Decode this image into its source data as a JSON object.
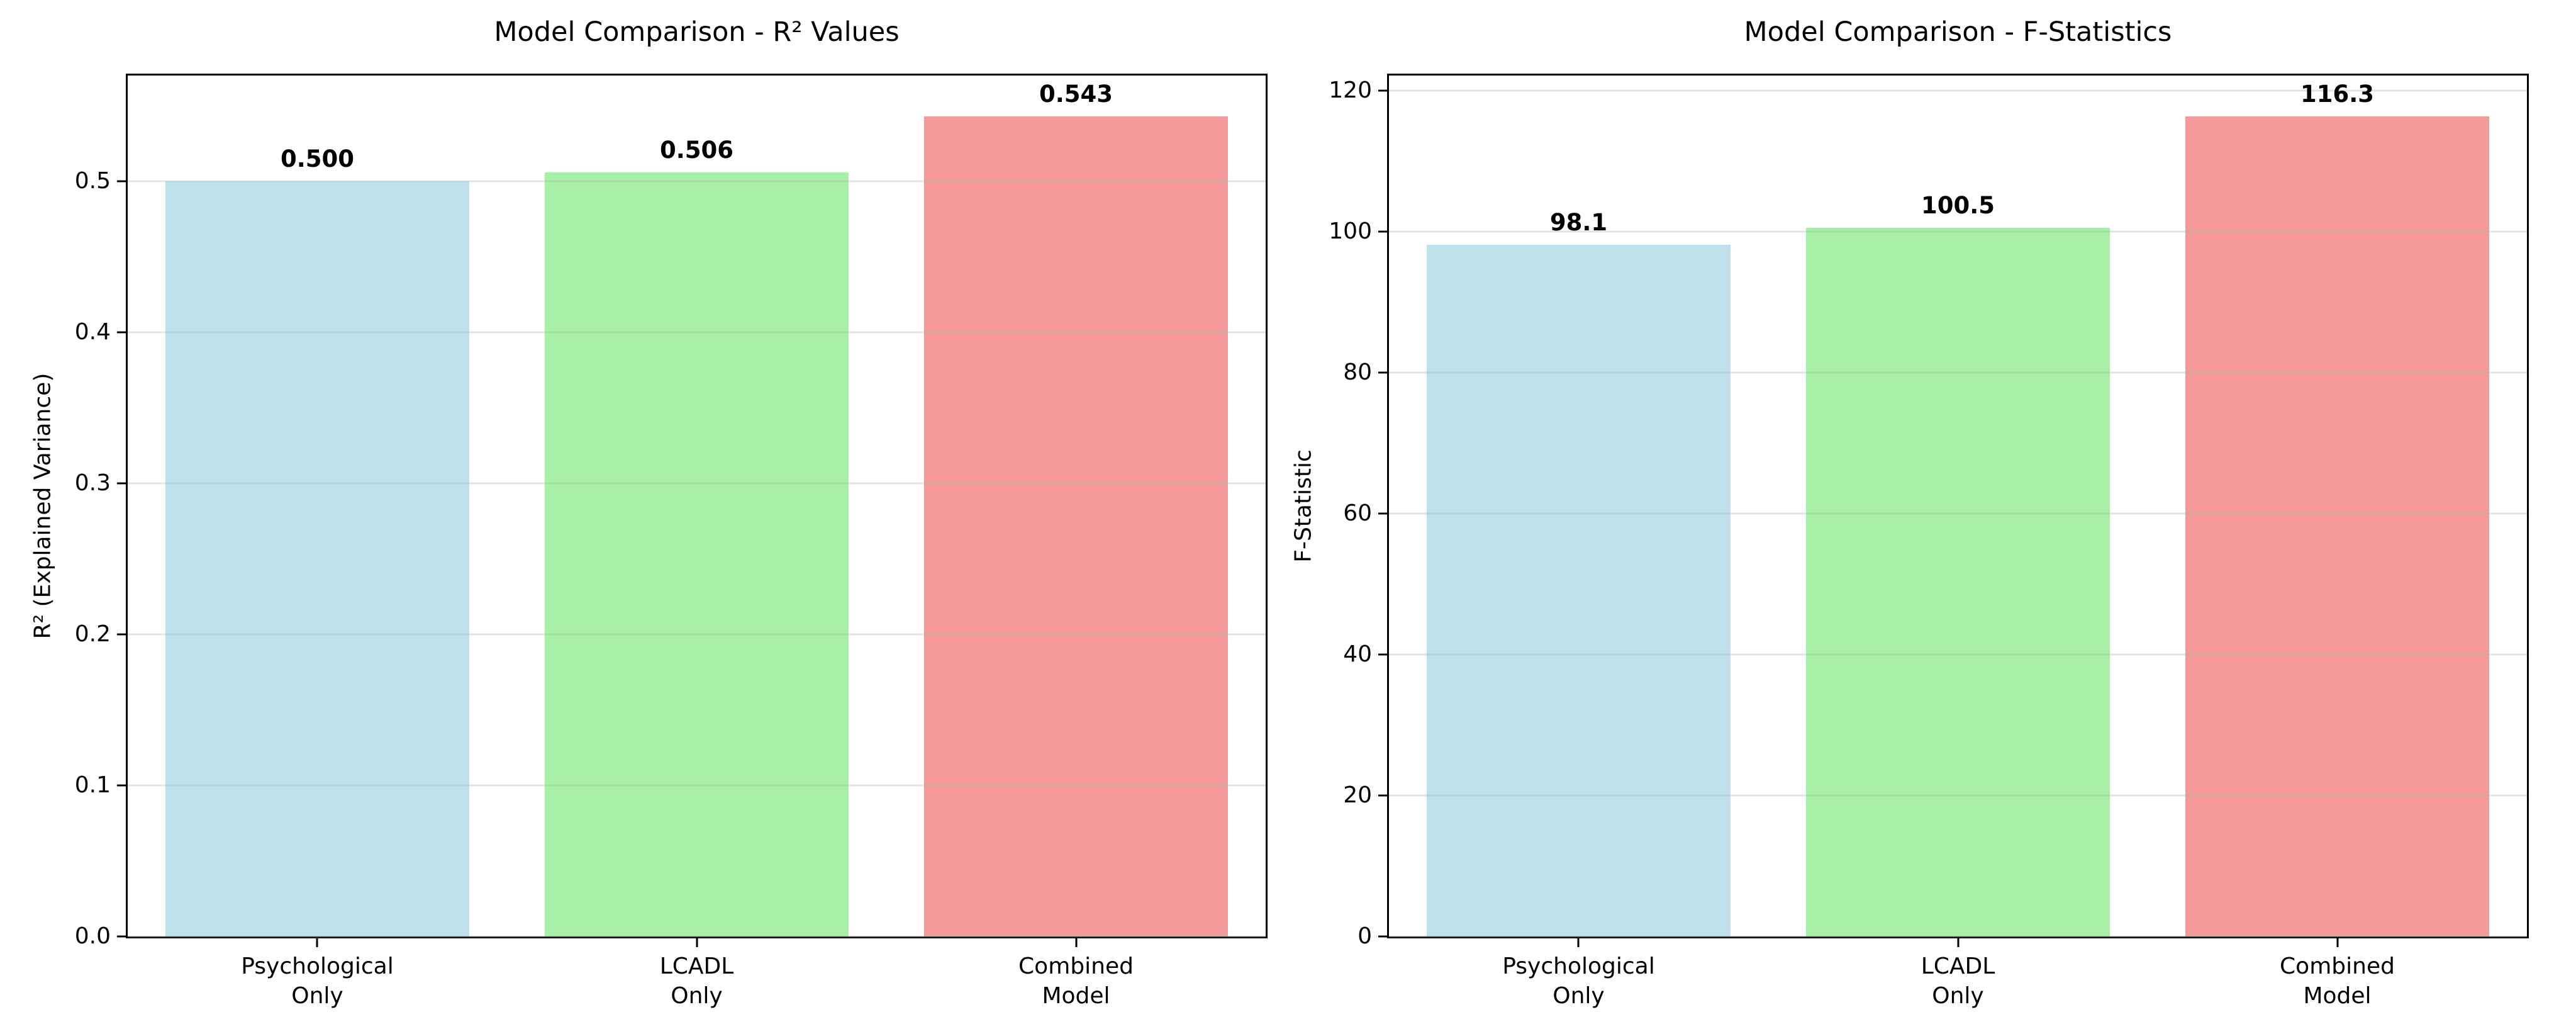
{
  "figure": {
    "background": "#ffffff",
    "spine_color": "#000000",
    "grid_color": "#b0b0b0",
    "text_color": "#000000"
  },
  "chart_data": [
    {
      "type": "bar",
      "title": "Model Comparison - R² Values",
      "ylabel": "R² (Explained Variance)",
      "xlabel": "",
      "categories": [
        "Psychological\nOnly",
        "LCADL\nOnly",
        "Combined\nModel"
      ],
      "values": [
        0.5,
        0.506,
        0.543
      ],
      "bar_labels": [
        "0.500",
        "0.506",
        "0.543"
      ],
      "bar_colors": [
        "#bde0eb",
        "#a6f1a6",
        "#f39999"
      ],
      "ylim": [
        0,
        0.57015
      ],
      "yticks": [
        0.0,
        0.1,
        0.2,
        0.3,
        0.4,
        0.5
      ],
      "ytick_labels": [
        "0.0",
        "0.1",
        "0.2",
        "0.3",
        "0.4",
        "0.5"
      ],
      "grid": true,
      "legend": null
    },
    {
      "type": "bar",
      "title": "Model Comparison - F-Statistics",
      "ylabel": "F-Statistic",
      "xlabel": "",
      "categories": [
        "Psychological\nOnly",
        "LCADL\nOnly",
        "Combined\nModel"
      ],
      "values": [
        98.1,
        100.5,
        116.3
      ],
      "bar_labels": [
        "98.1",
        "100.5",
        "116.3"
      ],
      "bar_colors": [
        "#bde0eb",
        "#a6f1a6",
        "#f39999"
      ],
      "ylim": [
        0,
        122.115
      ],
      "yticks": [
        0,
        20,
        40,
        60,
        80,
        100,
        120
      ],
      "ytick_labels": [
        "0",
        "20",
        "40",
        "60",
        "80",
        "100",
        "120"
      ],
      "grid": true,
      "legend": null
    }
  ]
}
